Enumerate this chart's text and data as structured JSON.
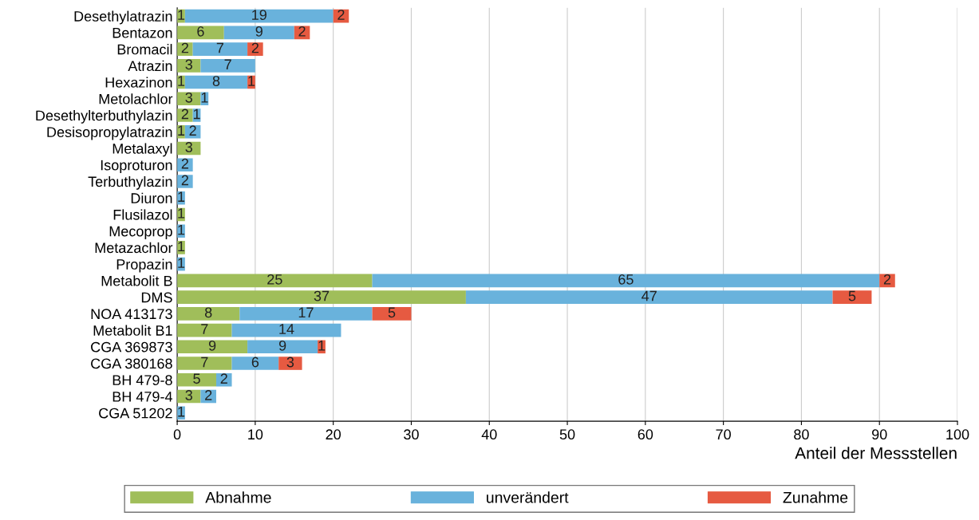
{
  "chart_data": {
    "type": "bar",
    "orientation": "horizontal",
    "stacked": true,
    "xlabel": "Anteil der Messstellen",
    "categories": [
      "Desethylatrazin",
      "Bentazon",
      "Bromacil",
      "Atrazin",
      "Hexazinon",
      "Metolachlor",
      "Desethylterbuthylazin",
      "Desisopropylatrazin",
      "Metalaxyl",
      "Isoproturon",
      "Terbuthylazin",
      "Diuron",
      "Flusilazol",
      "Mecoprop",
      "Metazachlor",
      "Propazin",
      "Metabolit B",
      "DMS",
      "NOA 413173",
      "Metabolit B1",
      "CGA 369873",
      "CGA 380168",
      "BH 479-8",
      "BH 479-4",
      "CGA 51202"
    ],
    "series": [
      {
        "name": "Abnahme",
        "color": "#a0be5a",
        "values": [
          1,
          6,
          2,
          3,
          1,
          3,
          2,
          1,
          3,
          null,
          null,
          null,
          1,
          null,
          1,
          null,
          25,
          37,
          8,
          7,
          9,
          7,
          5,
          3,
          null
        ]
      },
      {
        "name": "unverändert",
        "color": "#69b2dc",
        "values": [
          19,
          9,
          7,
          7,
          8,
          1,
          1,
          2,
          null,
          2,
          2,
          1,
          null,
          1,
          null,
          1,
          65,
          47,
          17,
          14,
          9,
          6,
          2,
          2,
          1
        ]
      },
      {
        "name": "Zunahme",
        "color": "#e65a41",
        "values": [
          2,
          2,
          2,
          null,
          1,
          null,
          null,
          null,
          null,
          null,
          null,
          null,
          null,
          null,
          null,
          null,
          2,
          5,
          5,
          null,
          1,
          3,
          null,
          null,
          null
        ]
      }
    ],
    "xlim": [
      0,
      100
    ],
    "xticks": [
      0,
      10,
      20,
      30,
      40,
      50,
      60,
      70,
      80,
      90,
      100
    ],
    "grid": "x",
    "legend": "bottom",
    "data_labels": true
  }
}
